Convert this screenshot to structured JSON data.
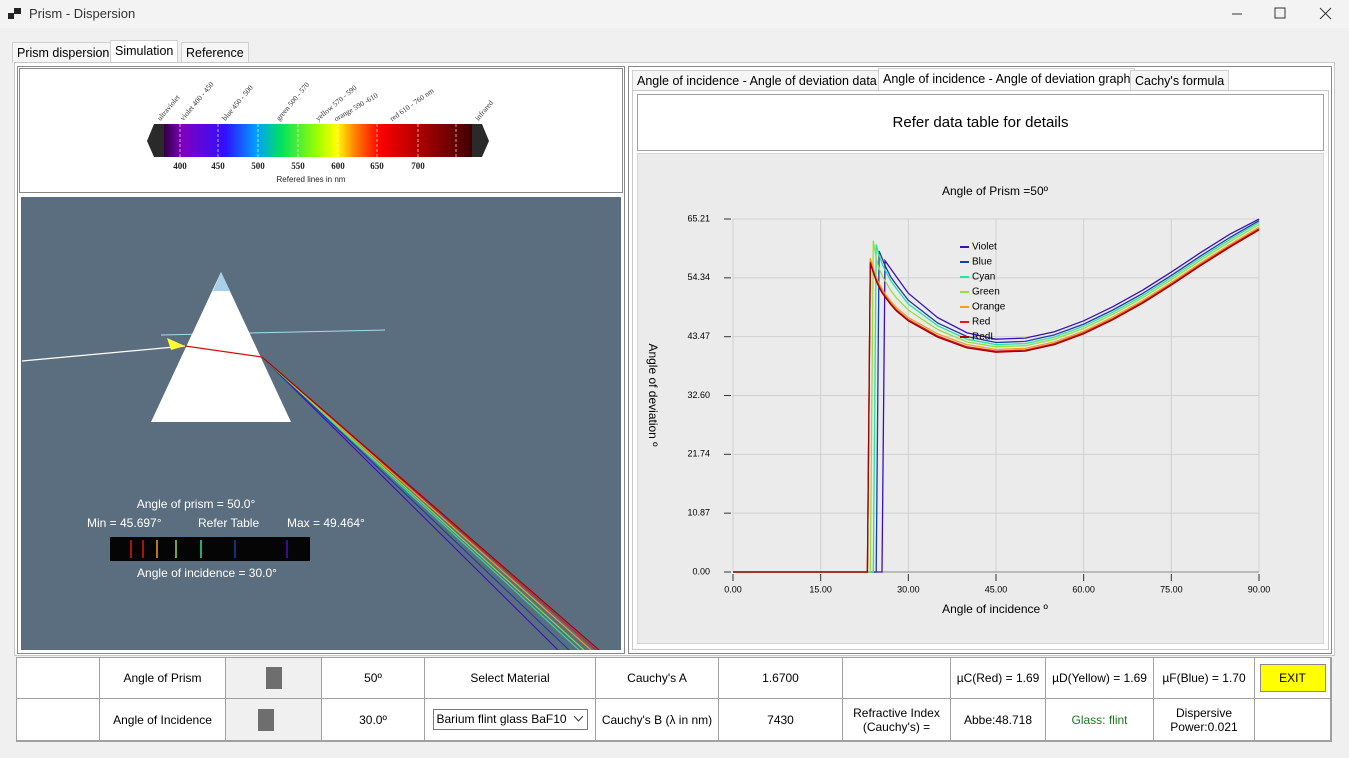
{
  "window": {
    "title": "Prism - Dispersion"
  },
  "tabs": [
    "Prism dispersion",
    "Simulation",
    "Reference"
  ],
  "spectrum": {
    "bands": [
      "ultraviolet",
      "violet 400 - 450",
      "blue 450 - 500",
      "green 500 - 570",
      "yellow 570 - 590",
      "orange 590 -610",
      "red 610 - 760 nm",
      "infrared"
    ],
    "ticks": [
      "400",
      "450",
      "500",
      "550",
      "600",
      "650",
      "700"
    ],
    "caption": "Refered lines in nm"
  },
  "simulation": {
    "prism_angle": "Angle of prism = 50.0°",
    "min": "Min = 45.697°",
    "refer": "Refer Table",
    "max": "Max = 49.464°",
    "incidence": "Angle of incidence = 30.0°"
  },
  "right_tabs": [
    "Angle of incidence - Angle of deviation data",
    "Angle of incidence - Angle of deviation graph",
    "Cachy's formula"
  ],
  "graph_header": "Refer data table for details",
  "chart_data": {
    "type": "line",
    "title": "Angle of Prism =50º",
    "x_label": "Angle of incidence º",
    "y_label": "Angle of deviation º",
    "x": [
      0,
      10,
      20,
      22,
      22.5,
      23,
      23.5,
      24,
      24.5,
      25,
      25.5,
      26,
      27,
      28,
      30,
      35,
      40,
      45,
      50,
      55,
      60,
      65,
      70,
      75,
      80,
      85,
      90
    ],
    "series": [
      {
        "name": "Violet",
        "color": "#3a10b8",
        "values": [
          0,
          0,
          0,
          0,
          0,
          0,
          0,
          0,
          0,
          0,
          0,
          57.5,
          56,
          54.5,
          51.5,
          47,
          44.2,
          43,
          43.2,
          44.4,
          46.4,
          49,
          52,
          55.4,
          59,
          62.4,
          65.2
        ]
      },
      {
        "name": "Blue",
        "color": "#1a3ca8",
        "values": [
          0,
          0,
          0,
          0,
          0,
          0,
          0,
          0,
          0,
          59.3,
          58,
          56.6,
          54.5,
          53,
          50.2,
          46,
          43.5,
          42.4,
          42.6,
          43.8,
          45.8,
          48.4,
          51.4,
          54.8,
          58.4,
          61.8,
          64.9
        ]
      },
      {
        "name": "Cyan",
        "color": "#2ee0a0",
        "values": [
          0,
          0,
          0,
          0,
          0,
          0,
          0,
          0,
          60.5,
          58.5,
          57,
          55.8,
          53.8,
          52.3,
          49.5,
          45.5,
          43,
          42,
          42.2,
          43.4,
          45.4,
          48,
          51,
          54.4,
          58,
          61.4,
          64.6
        ]
      },
      {
        "name": "Green",
        "color": "#90e040",
        "values": [
          0,
          0,
          0,
          0,
          0,
          0,
          0,
          61.2,
          58,
          56,
          54.8,
          53.8,
          52,
          50.6,
          48.4,
          44.8,
          42.5,
          41.6,
          41.8,
          43,
          45,
          47.6,
          50.6,
          54,
          57.6,
          61,
          64.2
        ]
      },
      {
        "name": "Orange",
        "color": "#f0a020",
        "values": [
          0,
          0,
          0,
          0,
          0,
          0,
          58,
          56,
          54.5,
          53.3,
          52.3,
          51.4,
          50,
          48.8,
          47,
          44,
          42,
          41.1,
          41.3,
          42.5,
          44.5,
          47.1,
          50.1,
          53.5,
          57.1,
          60.5,
          63.7
        ]
      },
      {
        "name": "Red",
        "color": "#e01818",
        "values": [
          0,
          0,
          0,
          0,
          0,
          0,
          57.3,
          55.5,
          54,
          52.8,
          51.8,
          51,
          49.6,
          48.4,
          46.6,
          43.6,
          41.6,
          40.8,
          41,
          42.2,
          44.2,
          46.8,
          49.8,
          53.2,
          56.8,
          60.2,
          63.4
        ]
      },
      {
        "name": "RedL",
        "color": "#a00000",
        "values": [
          0,
          0,
          0,
          0,
          0,
          0,
          57,
          55.3,
          53.8,
          52.6,
          51.6,
          50.8,
          49.4,
          48.2,
          46.4,
          43.4,
          41.4,
          40.6,
          40.8,
          42,
          44,
          46.6,
          49.6,
          53,
          56.6,
          60,
          63.2
        ]
      }
    ],
    "xlim": [
      0,
      90
    ],
    "ylim": [
      0,
      65.21
    ],
    "xticks": [
      {
        "value": 0,
        "label": "0.00"
      },
      {
        "value": 15,
        "label": "15.00"
      },
      {
        "value": 30,
        "label": "30.00"
      },
      {
        "value": 45,
        "label": "45.00"
      },
      {
        "value": 60,
        "label": "60.00"
      },
      {
        "value": 75,
        "label": "75.00"
      },
      {
        "value": 90,
        "label": "90.00"
      }
    ],
    "yticks": [
      {
        "value": 0,
        "label": "0.00"
      },
      10.87,
      21.74,
      {
        "value": 32.6,
        "label": "32.60"
      },
      43.47,
      54.34,
      65.21
    ],
    "grid": true
  },
  "controls": {
    "row1": [
      "Angle of Prism",
      "50º",
      "Select Material",
      "Cauchy's A",
      "1.6700",
      "µC(Red) = 1.69",
      "µD(Yellow) = 1.69",
      "µF(Blue) = 1.70",
      "EXIT"
    ],
    "row2": [
      "Angle of Incidence",
      "30.0º",
      "Barium flint glass BaF10",
      "Cauchy's B (λ in nm)",
      "7430",
      "Refractive Index (Cauchy's) =",
      "Abbe:48.718",
      "Glass: flint",
      "Dispersive Power:0.021"
    ]
  }
}
